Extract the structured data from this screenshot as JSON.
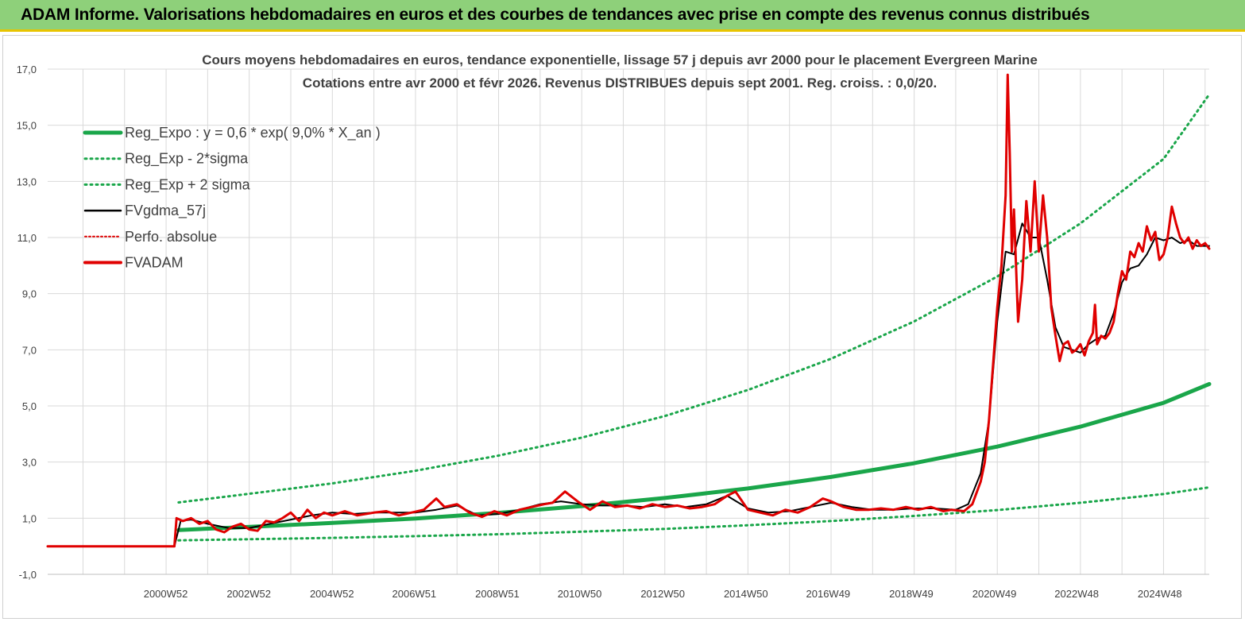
{
  "header": {
    "title": "ADAM Informe. Valorisations hebdomadaires en euros et des courbes de tendances avec prise en compte des revenus connus distribués"
  },
  "colors": {
    "banner_bg": "#8ed07a",
    "banner_border": "#e8c400",
    "reg_expo": "#1aa64a",
    "bands": "#1aa64a",
    "fvgdma": "#000000",
    "perfo": "#e00000",
    "fvadam": "#e00000",
    "grid": "#d9d9d9"
  },
  "chart_data": {
    "type": "line",
    "title": "Cours moyens hebdomadaires en euros, tendance exponentielle, lissage 57 j depuis avr 2000 pour le placement Evergreen  Marine",
    "subtitle": "Cotations entre avr 2000 et févr 2026. Revenus DISTRIBUES depuis sept 2001. Reg. croiss. : 0,0/20.",
    "xlabel": "",
    "ylabel": "",
    "ylim": [
      -1.0,
      17.0
    ],
    "xlim": [
      1998.15,
      2026.1
    ],
    "y_ticks": [
      "-1,0",
      "1,0",
      "3,0",
      "5,0",
      "7,0",
      "9,0",
      "11,0",
      "13,0",
      "15,0",
      "17,0"
    ],
    "x_ticks": [
      {
        "label": "2000W52",
        "x": 2000.99
      },
      {
        "label": "2002W52",
        "x": 2002.99
      },
      {
        "label": "2004W52",
        "x": 2004.99
      },
      {
        "label": "2006W51",
        "x": 2006.97
      },
      {
        "label": "2008W51",
        "x": 2008.97
      },
      {
        "label": "2010W50",
        "x": 2010.95
      },
      {
        "label": "2012W50",
        "x": 2012.95
      },
      {
        "label": "2014W50",
        "x": 2014.95
      },
      {
        "label": "2016W49",
        "x": 2016.93
      },
      {
        "label": "2018W49",
        "x": 2018.93
      },
      {
        "label": "2020W49",
        "x": 2020.93
      },
      {
        "label": "2022W48",
        "x": 2022.91
      },
      {
        "label": "2024W48",
        "x": 2024.91
      }
    ],
    "grid": true,
    "legend_position": "top-left",
    "legend": [
      {
        "label": "Reg_Expo : y = 0,6 * exp( 9,0% *  X_an )",
        "style": "thick-solid-green"
      },
      {
        "label": "Reg_Exp - 2*sigma",
        "style": "dotted-green"
      },
      {
        "label": "Reg_Exp + 2 sigma",
        "style": "dotted-green"
      },
      {
        "label": "FVgdma_57j",
        "style": "solid-black"
      },
      {
        "label": "Perfo. absolue",
        "style": "dotted-red"
      },
      {
        "label": "FVADAM",
        "style": "thick-solid-red"
      }
    ],
    "series": [
      {
        "name": "Reg_Expo : y = 0,6 * exp( 9,0% *  X_an )",
        "x": [
          2001.3,
          2003,
          2005,
          2007,
          2009,
          2011,
          2013,
          2015,
          2017,
          2019,
          2021,
          2023,
          2025,
          2026.1
        ],
        "y": [
          0.58,
          0.69,
          0.83,
          0.99,
          1.19,
          1.43,
          1.72,
          2.06,
          2.47,
          2.96,
          3.55,
          4.26,
          5.11,
          5.78
        ]
      },
      {
        "name": "Reg_Exp - 2*sigma",
        "x": [
          2001.3,
          2003,
          2005,
          2007,
          2009,
          2011,
          2013,
          2015,
          2017,
          2019,
          2021,
          2023,
          2025,
          2026.1
        ],
        "y": [
          0.21,
          0.25,
          0.3,
          0.36,
          0.43,
          0.52,
          0.62,
          0.75,
          0.9,
          1.08,
          1.29,
          1.55,
          1.86,
          2.1
        ]
      },
      {
        "name": "Reg_Exp + 2 sigma",
        "x": [
          2001.3,
          2003,
          2005,
          2007,
          2009,
          2011,
          2013,
          2015,
          2017,
          2019,
          2021,
          2023,
          2025,
          2026.1
        ],
        "y": [
          1.56,
          1.87,
          2.24,
          2.69,
          3.23,
          3.87,
          4.64,
          5.57,
          6.68,
          8.01,
          9.61,
          11.5,
          13.8,
          16.1
        ]
      },
      {
        "name": "FVgdma_57j",
        "x": [
          1998.15,
          2001.2,
          2001.35,
          2001.6,
          2002.0,
          2002.5,
          2003.0,
          2003.5,
          2004.0,
          2004.5,
          2005.0,
          2005.5,
          2006.0,
          2006.5,
          2007.0,
          2007.5,
          2008.0,
          2008.5,
          2009.0,
          2009.5,
          2010.0,
          2010.5,
          2011.0,
          2011.5,
          2012.0,
          2012.5,
          2013.0,
          2013.5,
          2014.0,
          2014.5,
          2015.0,
          2015.5,
          2016.0,
          2016.5,
          2017.0,
          2017.5,
          2018.0,
          2018.5,
          2019.0,
          2019.5,
          2020.0,
          2020.3,
          2020.6,
          2020.8,
          2021.0,
          2021.2,
          2021.4,
          2021.6,
          2021.8,
          2022.0,
          2022.2,
          2022.4,
          2022.6,
          2022.8,
          2023.0,
          2023.2,
          2023.4,
          2023.6,
          2023.8,
          2024.0,
          2024.2,
          2024.4,
          2024.6,
          2024.8,
          2025.0,
          2025.2,
          2025.4,
          2025.6,
          2025.8,
          2026.1
        ],
        "y": [
          0.0,
          0.0,
          0.9,
          0.95,
          0.8,
          0.65,
          0.65,
          0.8,
          0.95,
          1.1,
          1.2,
          1.15,
          1.2,
          1.2,
          1.2,
          1.3,
          1.45,
          1.1,
          1.15,
          1.3,
          1.5,
          1.6,
          1.5,
          1.45,
          1.45,
          1.4,
          1.5,
          1.4,
          1.5,
          1.8,
          1.35,
          1.2,
          1.25,
          1.4,
          1.55,
          1.4,
          1.3,
          1.3,
          1.35,
          1.35,
          1.3,
          1.5,
          2.6,
          4.5,
          8.0,
          10.5,
          10.4,
          11.5,
          11.0,
          11.0,
          9.5,
          7.8,
          7.1,
          7.0,
          6.9,
          7.2,
          7.4,
          7.5,
          8.3,
          9.4,
          9.9,
          10.0,
          10.4,
          11.0,
          10.9,
          11.0,
          10.8,
          10.9,
          10.7,
          10.7
        ]
      },
      {
        "name": "Perfo. absolue",
        "x": [
          1998.15,
          2001.2
        ],
        "y": [
          0.0,
          0.0
        ]
      },
      {
        "name": "FVADAM",
        "x": [
          1998.15,
          2001.2,
          2001.25,
          2001.4,
          2001.6,
          2001.8,
          2002.0,
          2002.2,
          2002.4,
          2002.6,
          2002.8,
          2003.0,
          2003.2,
          2003.4,
          2003.6,
          2003.8,
          2004.0,
          2004.2,
          2004.4,
          2004.6,
          2004.8,
          2005.0,
          2005.3,
          2005.6,
          2006.0,
          2006.3,
          2006.6,
          2006.9,
          2007.2,
          2007.5,
          2007.7,
          2008.0,
          2008.3,
          2008.6,
          2008.9,
          2009.2,
          2009.5,
          2009.8,
          2010.1,
          2010.3,
          2010.6,
          2010.9,
          2011.2,
          2011.5,
          2011.8,
          2012.1,
          2012.4,
          2012.7,
          2013.0,
          2013.3,
          2013.6,
          2013.9,
          2014.2,
          2014.5,
          2014.7,
          2015.0,
          2015.3,
          2015.6,
          2015.9,
          2016.2,
          2016.5,
          2016.8,
          2017.0,
          2017.3,
          2017.6,
          2017.9,
          2018.2,
          2018.5,
          2018.8,
          2019.1,
          2019.4,
          2019.7,
          2019.9,
          2020.2,
          2020.4,
          2020.6,
          2020.7,
          2020.8,
          2020.9,
          2021.0,
          2021.1,
          2021.2,
          2021.25,
          2021.3,
          2021.35,
          2021.4,
          2021.5,
          2021.6,
          2021.7,
          2021.8,
          2021.9,
          2022.0,
          2022.1,
          2022.2,
          2022.3,
          2022.4,
          2022.5,
          2022.6,
          2022.7,
          2022.8,
          2022.9,
          2023.0,
          2023.1,
          2023.2,
          2023.3,
          2023.35,
          2023.4,
          2023.5,
          2023.6,
          2023.7,
          2023.8,
          2023.9,
          2024.0,
          2024.1,
          2024.2,
          2024.3,
          2024.4,
          2024.5,
          2024.6,
          2024.7,
          2024.8,
          2024.9,
          2025.0,
          2025.1,
          2025.2,
          2025.3,
          2025.4,
          2025.5,
          2025.6,
          2025.7,
          2025.8,
          2025.9,
          2026.0,
          2026.1
        ],
        "y": [
          0.0,
          0.0,
          1.0,
          0.9,
          1.0,
          0.8,
          0.9,
          0.6,
          0.5,
          0.7,
          0.8,
          0.6,
          0.55,
          0.9,
          0.85,
          1.0,
          1.2,
          0.9,
          1.3,
          1.0,
          1.2,
          1.1,
          1.25,
          1.1,
          1.2,
          1.25,
          1.1,
          1.2,
          1.3,
          1.7,
          1.4,
          1.5,
          1.2,
          1.05,
          1.25,
          1.1,
          1.3,
          1.4,
          1.5,
          1.55,
          1.95,
          1.6,
          1.3,
          1.6,
          1.4,
          1.45,
          1.35,
          1.5,
          1.4,
          1.45,
          1.35,
          1.4,
          1.5,
          1.8,
          1.95,
          1.3,
          1.2,
          1.1,
          1.3,
          1.2,
          1.4,
          1.7,
          1.6,
          1.4,
          1.3,
          1.3,
          1.35,
          1.3,
          1.4,
          1.3,
          1.4,
          1.25,
          1.3,
          1.25,
          1.5,
          2.3,
          3.0,
          4.5,
          6.5,
          8.5,
          10.0,
          12.5,
          16.8,
          14.0,
          10.5,
          12.0,
          8.0,
          9.5,
          12.3,
          10.5,
          13.0,
          10.5,
          12.5,
          11.0,
          8.5,
          7.5,
          6.6,
          7.2,
          7.3,
          6.9,
          7.0,
          7.2,
          6.8,
          7.3,
          7.6,
          8.6,
          7.2,
          7.5,
          7.4,
          7.6,
          8.0,
          9.0,
          9.8,
          9.5,
          10.5,
          10.3,
          10.8,
          10.5,
          11.4,
          10.9,
          11.2,
          10.2,
          10.4,
          11.0,
          12.1,
          11.5,
          11.0,
          10.8,
          11.0,
          10.6,
          10.9,
          10.7,
          10.8,
          10.6
        ]
      }
    ]
  }
}
